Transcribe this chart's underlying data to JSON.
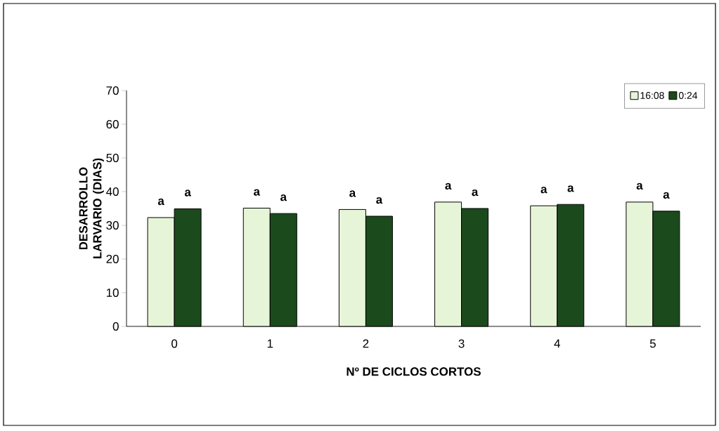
{
  "chart_data": {
    "type": "bar",
    "xlabel": "Nº DE CICLOS CORTOS",
    "ylabel": "DESARROLLO LARVARIO (DIAS)",
    "categories": [
      "0",
      "1",
      "2",
      "3",
      "4",
      "5"
    ],
    "series": [
      {
        "name": "16:08",
        "color": "#e6f5d8",
        "values": [
          32.3,
          35.1,
          34.7,
          36.9,
          35.8,
          36.9
        ],
        "value_labels": [
          "a",
          "a",
          "a",
          "a",
          "a",
          "a"
        ]
      },
      {
        "name": "0:24",
        "color": "#1b4a1d",
        "values": [
          34.9,
          33.5,
          32.7,
          35.0,
          36.2,
          34.2
        ],
        "value_labels": [
          "a",
          "a",
          "a",
          "a",
          "a",
          "a"
        ]
      }
    ],
    "ylim": [
      0,
      70
    ],
    "yticks": [
      0,
      10,
      20,
      30,
      40,
      50,
      60,
      70
    ],
    "legend": "top right",
    "grid": false
  }
}
